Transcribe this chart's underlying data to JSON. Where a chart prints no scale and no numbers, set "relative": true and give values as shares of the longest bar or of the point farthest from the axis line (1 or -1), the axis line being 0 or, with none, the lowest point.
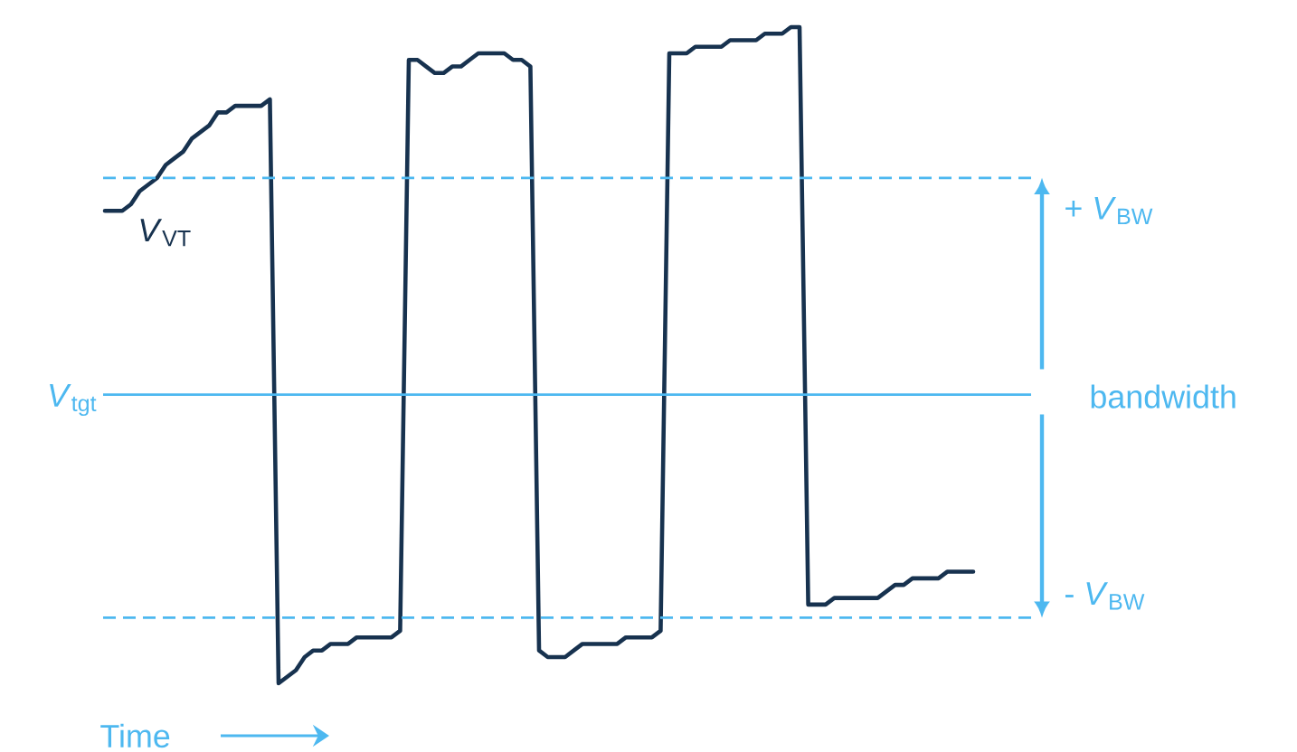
{
  "chart_data": {
    "type": "line",
    "relative": true,
    "xlabel": "Time",
    "categories": [
      null,
      null,
      null,
      null,
      null,
      null,
      null,
      null,
      null,
      null,
      null,
      null,
      null,
      null,
      null,
      null,
      null,
      null,
      null,
      null,
      null,
      null,
      null,
      null,
      null,
      null,
      null,
      null,
      null,
      null,
      null,
      null,
      null,
      null,
      null,
      null,
      null,
      null,
      null,
      null,
      null,
      null,
      null,
      null,
      null,
      null,
      null,
      null,
      null,
      null,
      null,
      null,
      null,
      null,
      null,
      null,
      null,
      null,
      null,
      null,
      null,
      null,
      null,
      null,
      null,
      null,
      null,
      null,
      null,
      null,
      null,
      null,
      null,
      null,
      null,
      null,
      null,
      null,
      null,
      null,
      null,
      null,
      null,
      null,
      null,
      null,
      null,
      null,
      null,
      null,
      null,
      null,
      null,
      null,
      null,
      null,
      null,
      null,
      null,
      null,
      null
    ],
    "series": [
      {
        "name": "*V*$_{VT}$",
        "color": "#17324f",
        "values": [
          0.72,
          0.72,
          0.72,
          0.73,
          0.75,
          0.76,
          0.77,
          0.79,
          0.8,
          0.81,
          0.83,
          0.84,
          0.85,
          0.87,
          0.87,
          0.88,
          0.88,
          0.88,
          0.88,
          0.89,
          0,
          0.01,
          0.02,
          0.04,
          0.05,
          0.05,
          0.06,
          0.06,
          0.06,
          0.07,
          0.07,
          0.07,
          0.07,
          0.07,
          0.08,
          0.95,
          0.95,
          0.94,
          0.93,
          0.93,
          0.94,
          0.94,
          0.95,
          0.96,
          0.96,
          0.96,
          0.96,
          0.95,
          0.95,
          0.94,
          0.05,
          0.04,
          0.04,
          0.04,
          0.05,
          0.06,
          0.06,
          0.06,
          0.06,
          0.06,
          0.07,
          0.07,
          0.07,
          0.07,
          0.08,
          0.96,
          0.96,
          0.96,
          0.97,
          0.97,
          0.97,
          0.97,
          0.98,
          0.98,
          0.98,
          0.98,
          0.99,
          0.99,
          0.99,
          1.0,
          1.0,
          0.12,
          0.12,
          0.12,
          0.13,
          0.13,
          0.13,
          0.13,
          0.13,
          0.13,
          0.14,
          0.15,
          0.15,
          0.16,
          0.16,
          0.16,
          0.16,
          0.17,
          0.17,
          0.17,
          0.17
        ]
      }
    ],
    "ref_lines": [
      {
        "axis": "y",
        "value": 0.77,
        "label": "+ *V*$_{BW}$",
        "color": "#4db8f0",
        "line_style": "dashed"
      },
      {
        "axis": "y",
        "value": 0.44,
        "label": "*V*$_{tgt}$",
        "color": "#4db8f0",
        "line_style": "solid"
      },
      {
        "axis": "y",
        "value": 0.1,
        "label": "- *V*$_{BW}$",
        "color": "#4db8f0",
        "line_style": "dashed"
      }
    ],
    "annotations": [
      "bandwidth"
    ]
  }
}
